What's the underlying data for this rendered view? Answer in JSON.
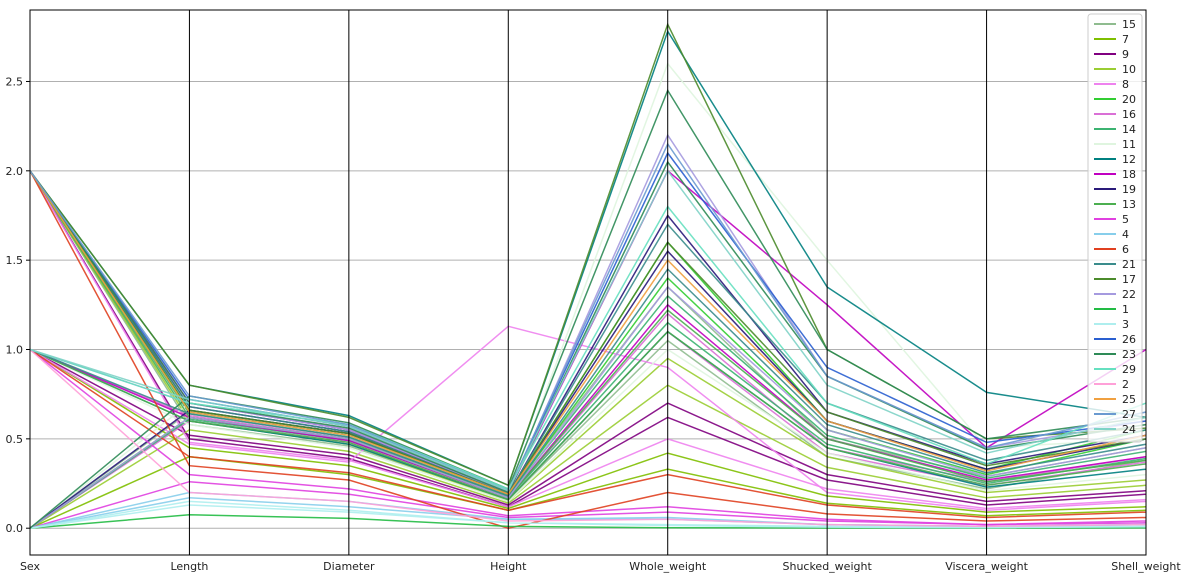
{
  "chart_data": {
    "type": "parallel_coordinates",
    "title": "",
    "axes": [
      "Sex",
      "Length",
      "Diameter",
      "Height",
      "Whole_weight",
      "Shucked_weight",
      "Viscera_weight",
      "Shell_weight"
    ],
    "ylim": [
      -0.15,
      2.9
    ],
    "yticks": [
      0.0,
      0.5,
      1.0,
      1.5,
      2.0,
      2.5
    ],
    "ytick_labels": [
      "0.0",
      "0.5",
      "1.0",
      "1.5",
      "2.0",
      "2.5"
    ],
    "grid": true,
    "legend_position": "top-right",
    "series": [
      {
        "name": "15",
        "color": "#8fbc8f",
        "lines": [
          [
            0,
            0.65,
            0.52,
            0.19,
            1.35,
            0.5,
            0.29,
            0.45
          ],
          [
            2,
            0.58,
            0.46,
            0.16,
            1.05,
            0.4,
            0.22,
            0.38
          ]
        ]
      },
      {
        "name": "7",
        "color": "#7fbf00",
        "lines": [
          [
            1,
            0.45,
            0.35,
            0.11,
            0.42,
            0.18,
            0.09,
            0.12
          ],
          [
            0,
            0.4,
            0.3,
            0.1,
            0.33,
            0.14,
            0.07,
            0.1
          ]
        ]
      },
      {
        "name": "9",
        "color": "#800080",
        "lines": [
          [
            1,
            0.52,
            0.41,
            0.13,
            0.7,
            0.3,
            0.15,
            0.21
          ],
          [
            2,
            0.5,
            0.39,
            0.12,
            0.62,
            0.27,
            0.13,
            0.19
          ]
        ]
      },
      {
        "name": "10",
        "color": "#9acd32",
        "lines": [
          [
            0,
            0.55,
            0.43,
            0.14,
            0.8,
            0.34,
            0.17,
            0.24
          ],
          [
            2,
            0.6,
            0.47,
            0.15,
            0.95,
            0.4,
            0.2,
            0.27
          ]
        ]
      },
      {
        "name": "8",
        "color": "#ee82ee",
        "lines": [
          [
            1,
            0.47,
            0.37,
            1.13,
            0.9,
            0.2,
            0.1,
            0.15
          ],
          [
            2,
            0.48,
            0.38,
            0.12,
            0.5,
            0.22,
            0.11,
            0.16
          ]
        ]
      },
      {
        "name": "20",
        "color": "#32cd32",
        "lines": [
          [
            0,
            0.62,
            0.5,
            0.18,
            1.4,
            0.55,
            0.3,
            0.5
          ],
          [
            2,
            0.66,
            0.53,
            0.19,
            1.6,
            0.6,
            0.33,
            0.55
          ]
        ]
      },
      {
        "name": "16",
        "color": "#da70d6",
        "lines": [
          [
            1,
            0.63,
            0.5,
            0.17,
            1.2,
            0.45,
            0.26,
            0.4
          ],
          [
            0,
            0.6,
            0.48,
            0.16,
            1.1,
            0.42,
            0.24,
            0.37
          ]
        ]
      },
      {
        "name": "14",
        "color": "#3cb371",
        "lines": [
          [
            2,
            0.64,
            0.51,
            0.18,
            1.3,
            0.52,
            0.28,
            0.43
          ],
          [
            0,
            0.61,
            0.49,
            0.17,
            1.15,
            0.47,
            0.25,
            0.39
          ]
        ]
      },
      {
        "name": "11",
        "color": "#dff5df",
        "lines": [
          [
            1,
            0.58,
            0.45,
            0.15,
            1.0,
            0.42,
            0.21,
            0.3
          ],
          [
            0,
            0.7,
            0.56,
            0.2,
            2.6,
            1.5,
            0.45,
            0.5
          ]
        ]
      },
      {
        "name": "12",
        "color": "#008080",
        "lines": [
          [
            2,
            0.8,
            0.63,
            0.24,
            2.78,
            1.35,
            0.76,
            0.62
          ],
          [
            1,
            0.6,
            0.47,
            0.16,
            1.1,
            0.45,
            0.23,
            0.33
          ]
        ]
      },
      {
        "name": "18",
        "color": "#c000c0",
        "lines": [
          [
            2,
            0.7,
            0.55,
            0.2,
            2.0,
            1.25,
            0.45,
            1.0
          ],
          [
            1,
            0.62,
            0.49,
            0.17,
            1.25,
            0.5,
            0.27,
            0.4
          ]
        ]
      },
      {
        "name": "19",
        "color": "#2a1a7a",
        "lines": [
          [
            0,
            0.66,
            0.53,
            0.19,
            1.55,
            0.6,
            0.33,
            0.5
          ],
          [
            2,
            0.68,
            0.54,
            0.19,
            1.75,
            0.65,
            0.36,
            0.52
          ]
        ]
      },
      {
        "name": "13",
        "color": "#4caf50",
        "lines": [
          [
            1,
            0.6,
            0.48,
            0.16,
            1.1,
            0.45,
            0.24,
            0.36
          ],
          [
            2,
            0.62,
            0.5,
            0.17,
            1.22,
            0.5,
            0.26,
            0.38
          ]
        ]
      },
      {
        "name": "5",
        "color": "#e040e0",
        "lines": [
          [
            1,
            0.3,
            0.22,
            0.07,
            0.12,
            0.05,
            0.02,
            0.04
          ],
          [
            0,
            0.26,
            0.19,
            0.06,
            0.09,
            0.04,
            0.02,
            0.03
          ]
        ]
      },
      {
        "name": "4",
        "color": "#87ceeb",
        "lines": [
          [
            0,
            0.17,
            0.12,
            0.05,
            0.05,
            0.02,
            0.01,
            0.02
          ],
          [
            0,
            0.2,
            0.15,
            0.05,
            0.06,
            0.02,
            0.01,
            0.02
          ]
        ]
      },
      {
        "name": "6",
        "color": "#e04020",
        "lines": [
          [
            2,
            0.35,
            0.27,
            0.0,
            0.2,
            0.08,
            0.04,
            0.06
          ],
          [
            1,
            0.4,
            0.31,
            0.1,
            0.3,
            0.13,
            0.06,
            0.09
          ]
        ]
      },
      {
        "name": "21",
        "color": "#3a8c8c",
        "lines": [
          [
            2,
            0.68,
            0.54,
            0.19,
            1.7,
            0.7,
            0.38,
            0.55
          ],
          [
            1,
            0.64,
            0.51,
            0.18,
            1.45,
            0.58,
            0.31,
            0.47
          ]
        ]
      },
      {
        "name": "17",
        "color": "#4b8b2b",
        "lines": [
          [
            2,
            0.8,
            0.62,
            0.24,
            2.82,
            1.0,
            0.5,
            0.56
          ],
          [
            2,
            0.66,
            0.53,
            0.19,
            1.6,
            0.65,
            0.35,
            0.5
          ]
        ]
      },
      {
        "name": "22",
        "color": "#a59adf",
        "lines": [
          [
            1,
            0.7,
            0.55,
            0.2,
            2.2,
            0.85,
            0.45,
            0.6
          ],
          [
            0,
            0.62,
            0.5,
            0.17,
            1.35,
            0.55,
            0.29,
            0.45
          ]
        ]
      },
      {
        "name": "1",
        "color": "#22bb44",
        "lines": [
          [
            0,
            0.075,
            0.055,
            0.01,
            0.002,
            0.001,
            0.0005,
            0.0015
          ]
        ]
      },
      {
        "name": "3",
        "color": "#aeeeee",
        "lines": [
          [
            0,
            0.15,
            0.1,
            0.03,
            0.02,
            0.01,
            0.005,
            0.01
          ],
          [
            0,
            0.13,
            0.09,
            0.03,
            0.015,
            0.006,
            0.003,
            0.008
          ]
        ]
      },
      {
        "name": "26",
        "color": "#2a5fd0",
        "lines": [
          [
            2,
            0.72,
            0.57,
            0.21,
            2.1,
            0.9,
            0.48,
            0.6
          ]
        ]
      },
      {
        "name": "23",
        "color": "#2e8b57",
        "lines": [
          [
            0,
            0.74,
            0.59,
            0.22,
            2.45,
            1.0,
            0.5,
            0.62
          ],
          [
            2,
            0.7,
            0.56,
            0.2,
            2.05,
            0.85,
            0.44,
            0.58
          ]
        ]
      },
      {
        "name": "29",
        "color": "#66e0c0",
        "lines": [
          [
            1,
            0.7,
            0.58,
            0.22,
            1.8,
            0.7,
            0.36,
            0.7
          ]
        ]
      },
      {
        "name": "2",
        "color": "#ffa0d8",
        "lines": [
          [
            1,
            0.2,
            0.15,
            0.04,
            0.05,
            0.02,
            0.01,
            0.02
          ]
        ]
      },
      {
        "name": "25",
        "color": "#f0a040",
        "lines": [
          [
            2,
            0.65,
            0.52,
            0.19,
            1.5,
            0.6,
            0.32,
            0.52
          ]
        ]
      },
      {
        "name": "27",
        "color": "#6a9ad0",
        "lines": [
          [
            2,
            0.74,
            0.58,
            0.21,
            2.15,
            0.85,
            0.45,
            0.65
          ]
        ]
      },
      {
        "name": "24",
        "color": "#7fd3c7",
        "lines": [
          [
            1,
            0.72,
            0.57,
            0.21,
            2.0,
            0.8,
            0.42,
            0.62
          ]
        ]
      }
    ]
  }
}
